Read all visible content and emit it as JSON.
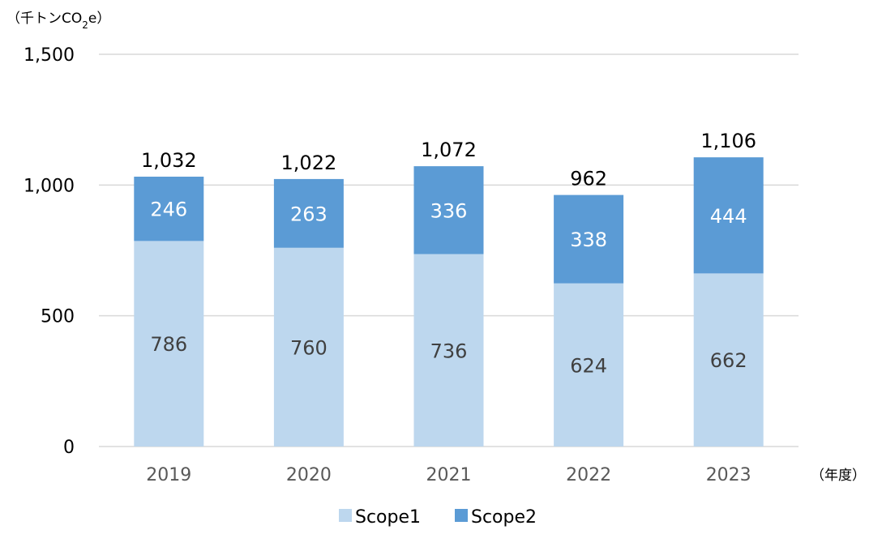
{
  "chart_data": {
    "type": "bar",
    "stacked": true,
    "ylabel_prefix": "（千トンCO",
    "ylabel_subscript": "2",
    "ylabel_suffix": "e）",
    "xlabel": "（年度）",
    "categories": [
      "2019",
      "2020",
      "2021",
      "2022",
      "2023"
    ],
    "series": [
      {
        "name": "Scope1",
        "values": [
          786,
          760,
          736,
          624,
          662
        ],
        "color": "#bdd7ee",
        "label_color": "#404040"
      },
      {
        "name": "Scope2",
        "values": [
          246,
          263,
          336,
          338,
          444
        ],
        "color": "#5b9bd5",
        "label_color": "#ffffff"
      }
    ],
    "totals": [
      "1,032",
      "1,022",
      "1,072",
      "962",
      "1,106"
    ],
    "value_labels": {
      "Scope1": [
        "786",
        "760",
        "736",
        "624",
        "662"
      ],
      "Scope2": [
        "246",
        "263",
        "336",
        "338",
        "444"
      ]
    },
    "yticks": [
      0,
      500,
      1000,
      1500
    ],
    "ytick_labels": [
      "0",
      "500",
      "1,000",
      "1,500"
    ],
    "ylim": [
      0,
      1500
    ],
    "grid": true,
    "gridline_color": "#d9d9d9",
    "legend_position": "bottom"
  }
}
